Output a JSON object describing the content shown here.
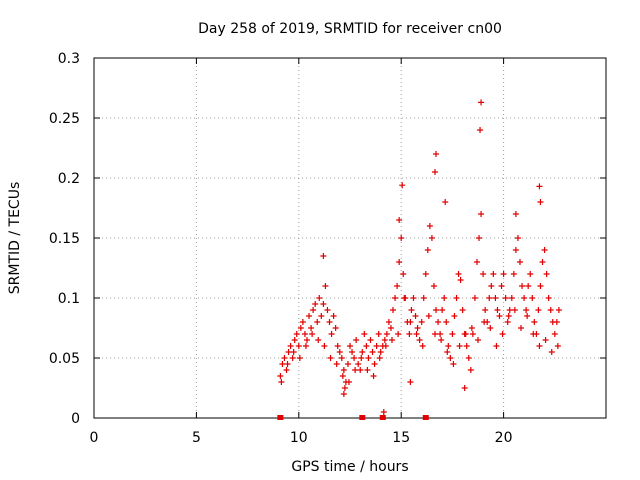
{
  "chart_data": {
    "type": "scatter",
    "title": "Day 258 of 2019, SRMTID for receiver cn00",
    "xlabel": "GPS time / hours",
    "ylabel": "SRMTID / TECUs",
    "xlim": [
      0,
      25
    ],
    "ylim": [
      0,
      0.3
    ],
    "x_ticks": [
      0,
      5,
      10,
      15,
      20
    ],
    "x_tick_labels": [
      "0",
      "5",
      "10",
      "15",
      "20"
    ],
    "y_ticks": [
      0,
      0.05,
      0.1,
      0.15,
      0.2,
      0.25,
      0.3
    ],
    "y_tick_labels": [
      "0",
      "0.05",
      "0.1",
      "0.15",
      "0.2",
      "0.25",
      "0.3"
    ],
    "grid": true,
    "marker": "+",
    "color": "#e00000",
    "series": [
      {
        "name": "SRMTID",
        "x": [
          9.1,
          9.2,
          9.3,
          9.4,
          9.5,
          9.6,
          9.7,
          9.8,
          9.9,
          10.0,
          10.1,
          10.2,
          10.3,
          10.4,
          10.5,
          10.6,
          10.7,
          10.8,
          10.9,
          11.0,
          11.1,
          11.2,
          11.3,
          11.4,
          11.5,
          11.6,
          11.7,
          11.8,
          11.9,
          12.0,
          12.1,
          12.2,
          12.3,
          12.4,
          12.5,
          12.6,
          12.7,
          12.8,
          12.9,
          13.0,
          13.1,
          13.2,
          13.3,
          13.4,
          13.5,
          13.6,
          13.7,
          13.8,
          13.9,
          14.0,
          14.1,
          14.2,
          14.3,
          14.4,
          14.5,
          14.6,
          14.7,
          14.8,
          14.9,
          15.0,
          15.1,
          15.2,
          15.3,
          15.4,
          15.5,
          15.6,
          15.7,
          15.8,
          15.9,
          16.0,
          16.1,
          16.2,
          16.3,
          16.4,
          16.5,
          16.6,
          16.7,
          16.8,
          16.9,
          17.0,
          17.1,
          17.2,
          17.3,
          17.4,
          17.5,
          17.6,
          17.7,
          17.8,
          17.9,
          18.0,
          18.1,
          18.2,
          18.3,
          18.4,
          18.5,
          18.6,
          18.7,
          18.8,
          18.9,
          19.0,
          19.1,
          19.2,
          19.3,
          19.4,
          19.5,
          19.6,
          19.7,
          19.8,
          19.9,
          20.0,
          20.1,
          20.2,
          20.3,
          20.4,
          20.5,
          20.6,
          20.7,
          20.8,
          20.9,
          21.0,
          21.1,
          21.2,
          21.3,
          21.4,
          21.5,
          21.6,
          21.7,
          21.8,
          21.9,
          22.0,
          22.1,
          22.2,
          22.3,
          22.4,
          22.5,
          22.6,
          22.7,
          9.15,
          9.45,
          9.75,
          10.05,
          10.35,
          10.65,
          10.95,
          11.25,
          11.55,
          11.85,
          12.15,
          12.45,
          12.75,
          13.05,
          13.35,
          13.65,
          13.95,
          14.25,
          14.55,
          14.85,
          15.15,
          15.45,
          15.75,
          16.05,
          16.35,
          16.65,
          16.95,
          17.25,
          17.55,
          17.85,
          18.15,
          18.45,
          18.75,
          19.05,
          19.35,
          19.65,
          19.95,
          20.25,
          20.55,
          20.85,
          21.15,
          21.45,
          21.75,
          22.05,
          22.35,
          22.65,
          18.85,
          18.9,
          16.65,
          16.7,
          14.9,
          15.05,
          17.15,
          20.6,
          21.75,
          21.8,
          11.2,
          14.15,
          15.45,
          12.2,
          12.25,
          18.1
        ],
        "y": [
          0.035,
          0.045,
          0.05,
          0.04,
          0.055,
          0.06,
          0.05,
          0.065,
          0.07,
          0.06,
          0.075,
          0.08,
          0.07,
          0.065,
          0.085,
          0.075,
          0.09,
          0.095,
          0.08,
          0.1,
          0.085,
          0.095,
          0.11,
          0.09,
          0.08,
          0.07,
          0.085,
          0.075,
          0.06,
          0.055,
          0.05,
          0.04,
          0.03,
          0.045,
          0.06,
          0.055,
          0.05,
          0.065,
          0.045,
          0.04,
          0.055,
          0.07,
          0.06,
          0.05,
          0.065,
          0.055,
          0.045,
          0.06,
          0.07,
          0.055,
          0.06,
          0.065,
          0.07,
          0.08,
          0.075,
          0.09,
          0.1,
          0.11,
          0.13,
          0.15,
          0.12,
          0.1,
          0.08,
          0.07,
          0.09,
          0.1,
          0.085,
          0.075,
          0.065,
          0.08,
          0.1,
          0.12,
          0.14,
          0.16,
          0.15,
          0.11,
          0.09,
          0.08,
          0.07,
          0.09,
          0.1,
          0.08,
          0.06,
          0.05,
          0.07,
          0.085,
          0.1,
          0.12,
          0.115,
          0.09,
          0.07,
          0.06,
          0.05,
          0.04,
          0.07,
          0.1,
          0.13,
          0.15,
          0.17,
          0.12,
          0.09,
          0.08,
          0.1,
          0.11,
          0.12,
          0.1,
          0.09,
          0.085,
          0.11,
          0.12,
          0.1,
          0.08,
          0.09,
          0.1,
          0.12,
          0.14,
          0.15,
          0.13,
          0.11,
          0.1,
          0.09,
          0.11,
          0.12,
          0.1,
          0.08,
          0.07,
          0.09,
          0.11,
          0.13,
          0.14,
          0.12,
          0.1,
          0.09,
          0.08,
          0.07,
          0.08,
          0.09,
          0.03,
          0.045,
          0.055,
          0.05,
          0.06,
          0.07,
          0.065,
          0.06,
          0.05,
          0.045,
          0.035,
          0.03,
          0.04,
          0.05,
          0.04,
          0.035,
          0.05,
          0.06,
          0.065,
          0.07,
          0.1,
          0.08,
          0.07,
          0.06,
          0.085,
          0.07,
          0.065,
          0.055,
          0.045,
          0.06,
          0.07,
          0.075,
          0.065,
          0.08,
          0.075,
          0.06,
          0.07,
          0.085,
          0.09,
          0.075,
          0.085,
          0.07,
          0.06,
          0.065,
          0.055,
          0.06,
          0.24,
          0.263,
          0.205,
          0.22,
          0.165,
          0.194,
          0.18,
          0.17,
          0.193,
          0.18,
          0.135,
          0.005,
          0.03,
          0.02,
          0.025,
          0.025
        ]
      }
    ],
    "zero_markers_x": [
      9.1,
      13.1,
      14.1,
      16.2
    ]
  }
}
